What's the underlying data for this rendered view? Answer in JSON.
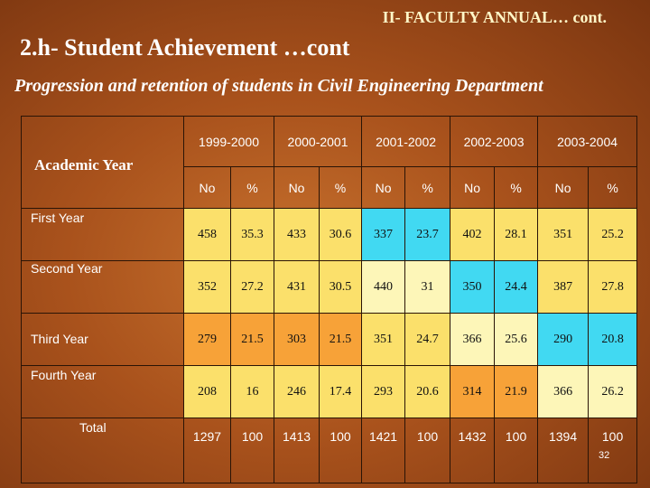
{
  "header": "II- FACULTY ANNUAL… cont.",
  "title": "2.h- Student Achievement …cont",
  "subtitle": "Progression and retention of students in Civil Engineering Department",
  "table": {
    "corner_label": "Academic Year",
    "years": [
      "1999-2000",
      "2000-2001",
      "2001-2002",
      "2002-2003",
      "2003-2004"
    ],
    "subheaders": [
      "No",
      "%",
      "No",
      "%",
      "No",
      "%",
      "No",
      "%",
      "No",
      "%"
    ],
    "rows": [
      {
        "label": "First Year",
        "cells": [
          "458",
          "35.3",
          "433",
          "30.6",
          "337",
          "23.7",
          "402",
          "28.1",
          "351",
          "25.2"
        ]
      },
      {
        "label": "Second Year",
        "cells": [
          "352",
          "27.2",
          "431",
          "30.5",
          "440",
          "31",
          "350",
          "24.4",
          "387",
          "27.8"
        ]
      },
      {
        "label": "Third Year",
        "cells": [
          "279",
          "21.5",
          "303",
          "21.5",
          "351",
          "24.7",
          "366",
          "25.6",
          "290",
          "20.8"
        ]
      },
      {
        "label": "Fourth Year",
        "cells": [
          "208",
          "16",
          "246",
          "17.4",
          "293",
          "20.6",
          "314",
          "21.9",
          "366",
          "26.2"
        ]
      }
    ],
    "total": {
      "label": "Total",
      "cells": [
        "1297",
        "100",
        "1413",
        "100",
        "1421",
        "100",
        "1432",
        "100",
        "1394",
        "100"
      ]
    }
  },
  "page_number": "32",
  "colors": {
    "background": "#a9521c",
    "orange": "#f7a238",
    "yellow": "#fbe06b",
    "pale_yellow": "#fdf6b8",
    "cyan": "#41d9f2",
    "header_text": "#fff7c8"
  }
}
